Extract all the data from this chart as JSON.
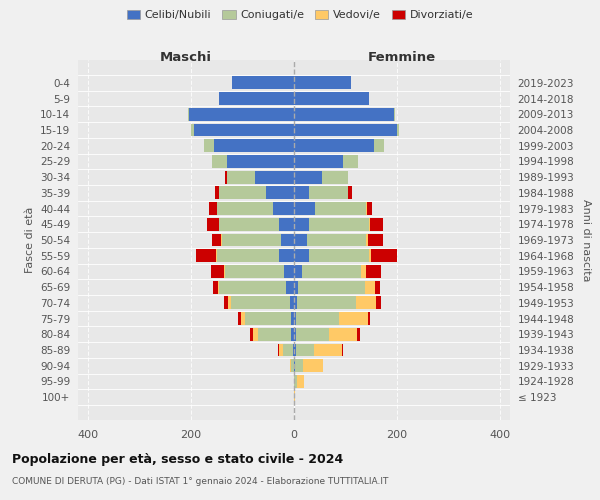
{
  "age_groups": [
    "0-4",
    "5-9",
    "10-14",
    "15-19",
    "20-24",
    "25-29",
    "30-34",
    "35-39",
    "40-44",
    "45-49",
    "50-54",
    "55-59",
    "60-64",
    "65-69",
    "70-74",
    "75-79",
    "80-84",
    "85-89",
    "90-94",
    "95-99",
    "100+"
  ],
  "birth_years": [
    "2019-2023",
    "2014-2018",
    "2009-2013",
    "2004-2008",
    "1999-2003",
    "1994-1998",
    "1989-1993",
    "1984-1988",
    "1979-1983",
    "1974-1978",
    "1969-1973",
    "1964-1968",
    "1959-1963",
    "1954-1958",
    "1949-1953",
    "1944-1948",
    "1939-1943",
    "1934-1938",
    "1929-1933",
    "1924-1928",
    "≤ 1923"
  ],
  "male": {
    "celibi": [
      120,
      145,
      205,
      195,
      155,
      130,
      75,
      55,
      40,
      30,
      25,
      30,
      20,
      15,
      8,
      5,
      5,
      2,
      0,
      0,
      0
    ],
    "coniugati": [
      0,
      0,
      2,
      5,
      20,
      30,
      55,
      90,
      110,
      115,
      115,
      120,
      115,
      130,
      115,
      90,
      65,
      20,
      5,
      0,
      0
    ],
    "vedovi": [
      0,
      0,
      0,
      0,
      0,
      0,
      0,
      0,
      0,
      0,
      1,
      1,
      2,
      3,
      5,
      8,
      10,
      8,
      2,
      0,
      0
    ],
    "divorziati": [
      0,
      0,
      0,
      0,
      0,
      0,
      5,
      8,
      15,
      25,
      18,
      40,
      25,
      10,
      8,
      5,
      5,
      2,
      0,
      0,
      0
    ]
  },
  "female": {
    "nubili": [
      110,
      145,
      195,
      200,
      155,
      95,
      55,
      30,
      40,
      30,
      25,
      30,
      15,
      8,
      5,
      3,
      3,
      3,
      2,
      0,
      0
    ],
    "coniugate": [
      0,
      0,
      2,
      5,
      20,
      30,
      50,
      75,
      100,
      115,
      115,
      115,
      115,
      130,
      115,
      85,
      65,
      35,
      15,
      5,
      0
    ],
    "vedove": [
      0,
      0,
      0,
      0,
      0,
      0,
      0,
      0,
      2,
      3,
      3,
      5,
      10,
      20,
      40,
      55,
      55,
      55,
      40,
      15,
      2
    ],
    "divorziate": [
      0,
      0,
      0,
      0,
      0,
      0,
      0,
      8,
      10,
      25,
      30,
      50,
      30,
      10,
      10,
      5,
      5,
      2,
      0,
      0,
      0
    ]
  },
  "colors": {
    "celibi": "#4472c4",
    "coniugati": "#b5c99a",
    "vedovi": "#ffc966",
    "divorziati": "#cc0000"
  },
  "title": "Popolazione per età, sesso e stato civile - 2024",
  "subtitle": "COMUNE DI DERUTA (PG) - Dati ISTAT 1° gennaio 2024 - Elaborazione TUTTITALIA.IT",
  "xlabel_left": "Maschi",
  "xlabel_right": "Femmine",
  "ylabel_left": "Fasce di età",
  "ylabel_right": "Anni di nascita",
  "xlim": 420,
  "legend_labels": [
    "Celibi/Nubili",
    "Coniugati/e",
    "Vedovi/e",
    "Divorziati/e"
  ],
  "bg_color": "#f0f0f0",
  "plot_bg": "#e8e8e8"
}
